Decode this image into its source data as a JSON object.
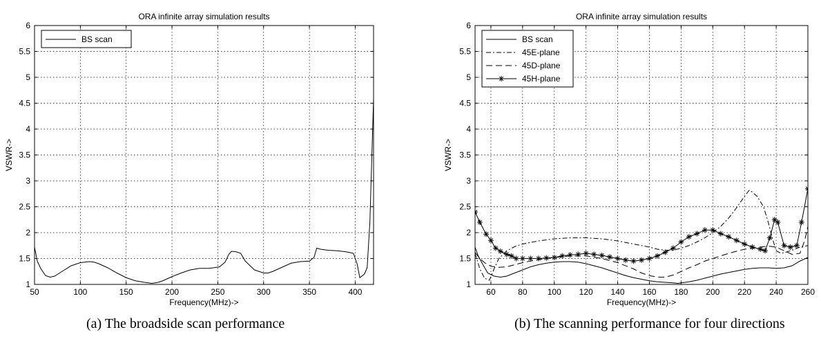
{
  "colors": {
    "line": "#000000",
    "grid": "#000000",
    "background": "#ffffff"
  },
  "captions": {
    "a": "(a) The broadside scan performance",
    "b": "(b) The scanning performance for four directions"
  },
  "chart_data": [
    {
      "type": "line",
      "title": "ORA infinite array  simulation results",
      "xlabel": "Frequency(MHz)->",
      "ylabel": "VSWR->",
      "xlim": [
        50,
        420
      ],
      "ylim": [
        1,
        6
      ],
      "xticks": [
        50,
        100,
        150,
        200,
        250,
        300,
        350,
        400
      ],
      "xtick_labels": [
        "50",
        "100",
        "150",
        "200",
        "250",
        "300",
        "350",
        "400"
      ],
      "yticks": [
        1,
        1.5,
        2,
        2.5,
        3,
        3.5,
        4,
        4.5,
        5,
        5.5,
        6
      ],
      "ytick_labels": [
        "1",
        "1.5",
        "2",
        "2.5",
        "3",
        "3.5",
        "4",
        "4.5",
        "5",
        "5.5",
        "6"
      ],
      "grid": true,
      "legend": "top-left",
      "series": [
        {
          "name": "BS scan",
          "style": "solid",
          "marker": "none",
          "x": [
            50,
            53,
            57,
            62,
            67,
            72,
            80,
            90,
            100,
            110,
            115,
            120,
            130,
            140,
            150,
            160,
            170,
            178,
            185,
            190,
            200,
            210,
            220,
            230,
            240,
            245,
            252,
            258,
            262,
            265,
            270,
            275,
            280,
            290,
            300,
            305,
            310,
            320,
            330,
            340,
            350,
            355,
            358,
            362,
            370,
            380,
            390,
            398,
            402,
            405,
            410,
            413,
            416,
            418,
            420
          ],
          "values": [
            1.72,
            1.45,
            1.3,
            1.17,
            1.14,
            1.16,
            1.25,
            1.36,
            1.42,
            1.44,
            1.43,
            1.4,
            1.32,
            1.22,
            1.13,
            1.07,
            1.04,
            1.02,
            1.04,
            1.07,
            1.15,
            1.22,
            1.28,
            1.31,
            1.31,
            1.32,
            1.34,
            1.43,
            1.58,
            1.64,
            1.63,
            1.6,
            1.45,
            1.28,
            1.22,
            1.22,
            1.25,
            1.33,
            1.41,
            1.44,
            1.45,
            1.52,
            1.7,
            1.68,
            1.66,
            1.65,
            1.63,
            1.6,
            1.4,
            1.13,
            1.2,
            1.32,
            2.2,
            3.4,
            4.6
          ]
        }
      ]
    },
    {
      "type": "line",
      "title": "ORA infinite array  simulation results",
      "xlabel": "Frequency(MHz)->",
      "ylabel": "VSWR->",
      "xlim": [
        50,
        260
      ],
      "ylim": [
        1,
        6
      ],
      "xticks": [
        60,
        80,
        100,
        120,
        140,
        160,
        180,
        200,
        220,
        240,
        260
      ],
      "xtick_labels": [
        "60",
        "80",
        "100",
        "120",
        "140",
        "160",
        "180",
        "200",
        "220",
        "240",
        "260"
      ],
      "yticks": [
        1,
        1.5,
        2,
        2.5,
        3,
        3.5,
        4,
        4.5,
        5,
        5.5,
        6
      ],
      "ytick_labels": [
        "1",
        "1.5",
        "2",
        "2.5",
        "3",
        "3.5",
        "4",
        "4.5",
        "5",
        "5.5",
        "6"
      ],
      "grid": true,
      "legend": "top-left",
      "series": [
        {
          "name": "BS scan",
          "style": "solid",
          "marker": "none",
          "x": [
            50,
            52,
            55,
            58,
            62,
            66,
            70,
            75,
            80,
            85,
            90,
            95,
            100,
            105,
            110,
            115,
            120,
            125,
            130,
            135,
            140,
            145,
            150,
            155,
            160,
            165,
            170,
            175,
            178,
            180,
            185,
            190,
            195,
            200,
            205,
            210,
            215,
            220,
            225,
            230,
            235,
            240,
            245,
            250,
            255,
            260
          ],
          "values": [
            1.72,
            1.55,
            1.38,
            1.22,
            1.16,
            1.14,
            1.16,
            1.22,
            1.28,
            1.34,
            1.38,
            1.41,
            1.43,
            1.44,
            1.44,
            1.43,
            1.4,
            1.36,
            1.32,
            1.27,
            1.22,
            1.17,
            1.13,
            1.1,
            1.07,
            1.05,
            1.04,
            1.03,
            1.02,
            1.03,
            1.05,
            1.08,
            1.12,
            1.16,
            1.2,
            1.23,
            1.26,
            1.29,
            1.31,
            1.32,
            1.32,
            1.31,
            1.32,
            1.36,
            1.45,
            1.52
          ]
        },
        {
          "name": "45E-plane",
          "style": "dashdot",
          "marker": "none",
          "x": [
            50,
            53,
            56,
            59,
            62,
            65,
            70,
            75,
            80,
            90,
            100,
            110,
            120,
            130,
            140,
            150,
            160,
            165,
            170,
            175,
            180,
            185,
            190,
            195,
            200,
            205,
            210,
            215,
            220,
            223,
            225,
            228,
            232,
            235,
            238,
            240,
            243,
            246,
            250,
            255,
            260
          ],
          "values": [
            1.6,
            1.3,
            1.12,
            1.08,
            1.3,
            1.5,
            1.65,
            1.73,
            1.78,
            1.84,
            1.88,
            1.9,
            1.9,
            1.88,
            1.84,
            1.78,
            1.72,
            1.68,
            1.66,
            1.66,
            1.7,
            1.75,
            1.82,
            1.9,
            2.0,
            2.12,
            2.28,
            2.48,
            2.7,
            2.82,
            2.78,
            2.7,
            2.5,
            2.2,
            1.85,
            1.65,
            1.6,
            1.62,
            1.66,
            1.72,
            1.75
          ]
        },
        {
          "name": "45D-plane",
          "style": "dashed",
          "marker": "none",
          "x": [
            50,
            53,
            56,
            60,
            65,
            70,
            75,
            80,
            90,
            100,
            110,
            120,
            130,
            140,
            150,
            155,
            160,
            165,
            170,
            175,
            180,
            185,
            190,
            195,
            200,
            205,
            210,
            215,
            220,
            225,
            230,
            235,
            240,
            245,
            250,
            255,
            258,
            260
          ],
          "values": [
            1.62,
            1.5,
            1.42,
            1.35,
            1.33,
            1.34,
            1.38,
            1.42,
            1.48,
            1.52,
            1.55,
            1.55,
            1.5,
            1.42,
            1.3,
            1.22,
            1.17,
            1.14,
            1.14,
            1.18,
            1.25,
            1.32,
            1.38,
            1.45,
            1.5,
            1.55,
            1.6,
            1.64,
            1.68,
            1.7,
            1.72,
            1.74,
            1.72,
            1.65,
            1.58,
            1.6,
            1.85,
            2.12
          ]
        },
        {
          "name": "45H-plane",
          "style": "solid",
          "marker": "star",
          "x": [
            50,
            53,
            57,
            60,
            63,
            66,
            70,
            73,
            76,
            80,
            85,
            90,
            95,
            100,
            105,
            110,
            115,
            120,
            125,
            130,
            135,
            140,
            145,
            150,
            155,
            160,
            165,
            170,
            175,
            180,
            185,
            190,
            195,
            200,
            205,
            210,
            215,
            220,
            225,
            230,
            233,
            236,
            239,
            241,
            245,
            249,
            253,
            256,
            260
          ],
          "values": [
            2.4,
            2.2,
            1.97,
            1.85,
            1.7,
            1.64,
            1.58,
            1.55,
            1.5,
            1.5,
            1.5,
            1.5,
            1.51,
            1.52,
            1.55,
            1.57,
            1.58,
            1.6,
            1.58,
            1.56,
            1.53,
            1.5,
            1.47,
            1.45,
            1.47,
            1.5,
            1.55,
            1.62,
            1.7,
            1.82,
            1.92,
            1.98,
            2.05,
            2.05,
            1.98,
            1.92,
            1.85,
            1.78,
            1.72,
            1.68,
            1.65,
            1.9,
            2.25,
            2.2,
            1.75,
            1.72,
            1.75,
            2.2,
            2.85
          ]
        }
      ]
    }
  ]
}
